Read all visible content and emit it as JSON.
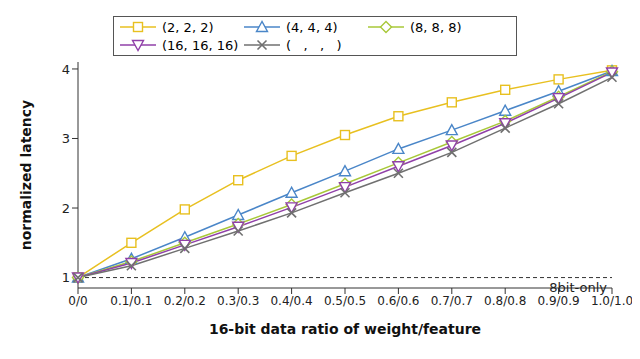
{
  "chart_data": {
    "type": "line",
    "x_label": "16-bit data ratio of weight/feature",
    "y_label": "normalized latency",
    "categories": [
      "0/0",
      "0.1/0.1",
      "0.2/0.2",
      "0.3/0.3",
      "0.4/0.4",
      "0.5/0.5",
      "0.6/0.6",
      "0.7/0.7",
      "0.8/0.8",
      "0.9/0.9",
      "1.0/1.0"
    ],
    "series": [
      {
        "name": "(2, 2, 2)",
        "color": "#e8c020",
        "marker": "square",
        "values": [
          1.0,
          1.5,
          1.98,
          2.4,
          2.75,
          3.05,
          3.32,
          3.52,
          3.7,
          3.85,
          3.98
        ]
      },
      {
        "name": "(4, 4, 4)",
        "color": "#4a86c8",
        "marker": "triangle",
        "values": [
          1.0,
          1.27,
          1.58,
          1.9,
          2.22,
          2.53,
          2.85,
          3.12,
          3.4,
          3.68,
          3.97
        ]
      },
      {
        "name": "(8, 8, 8)",
        "color": "#a8c838",
        "marker": "diamond",
        "values": [
          1.0,
          1.23,
          1.5,
          1.77,
          2.05,
          2.35,
          2.65,
          2.95,
          3.25,
          3.6,
          3.96
        ]
      },
      {
        "name": "(16, 16, 16)",
        "color": "#9040a8",
        "marker": "triangle-down",
        "values": [
          1.0,
          1.21,
          1.47,
          1.73,
          2.01,
          2.3,
          2.6,
          2.9,
          3.22,
          3.58,
          3.95
        ]
      },
      {
        "name": "(   ,   ,   )",
        "color": "#707070",
        "marker": "x",
        "values": [
          1.0,
          1.17,
          1.42,
          1.67,
          1.93,
          2.22,
          2.5,
          2.8,
          3.15,
          3.5,
          3.88
        ]
      }
    ],
    "ylim": [
      0.85,
      4.1
    ],
    "yticks": [
      1,
      2,
      3,
      4
    ],
    "grid": false,
    "legend": "top",
    "annotations": [
      {
        "text": "8bit-only",
        "y": 1
      }
    ]
  }
}
